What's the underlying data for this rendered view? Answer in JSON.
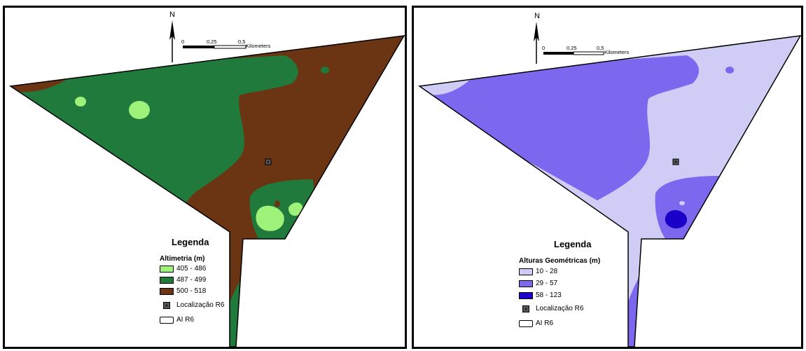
{
  "north_label": "N",
  "scale": {
    "l0": "0",
    "l1": "0,25",
    "l2": "0,5",
    "unit": "Kilometers"
  },
  "maps": [
    {
      "legend_title": "Legenda",
      "variable": "Altimetria (m)",
      "classes": [
        {
          "label": "405 - 486",
          "color": "#9ef27a"
        },
        {
          "label": "487 - 499",
          "color": "#1f7a3b"
        },
        {
          "label": "500 - 518",
          "color": "#6b3412"
        }
      ],
      "location_label": "Localização R6",
      "boundary_label": "AI R6"
    },
    {
      "legend_title": "Legenda",
      "variable": "Alturas Geométricas (m)",
      "classes": [
        {
          "label": "10 - 28",
          "color": "#cfccf6"
        },
        {
          "label": "29 - 57",
          "color": "#7b68ee"
        },
        {
          "label": "58 - 123",
          "color": "#1a00c8"
        }
      ],
      "location_label": "Localização R6",
      "boundary_label": "AI R6"
    }
  ]
}
